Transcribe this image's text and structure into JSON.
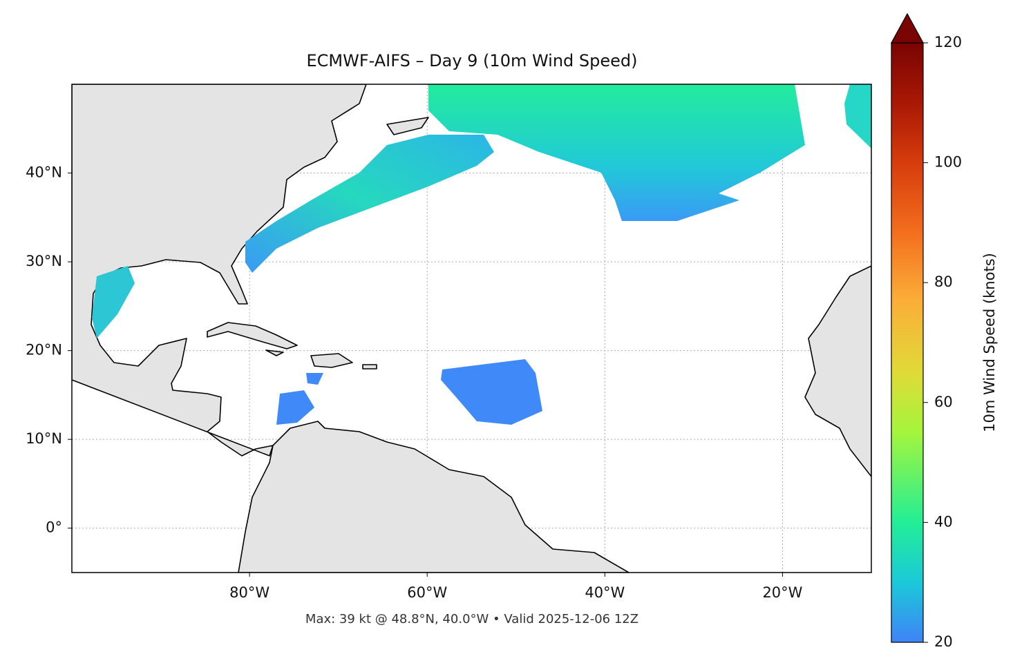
{
  "title": "ECMWF-AIFS – Day 9 (10m Wind Speed)",
  "note": "Max: 39 kt @ 48.8°N, 40.0°W • Valid 2025-12-06 12Z",
  "map": {
    "xlim": [
      -100,
      -10
    ],
    "ylim": [
      -5,
      50
    ],
    "xticks": [
      {
        "value": -80,
        "label": "80°W"
      },
      {
        "value": -60,
        "label": "60°W"
      },
      {
        "value": -40,
        "label": "40°W"
      },
      {
        "value": -20,
        "label": "20°W"
      }
    ],
    "yticks": [
      {
        "value": 0,
        "label": "0°"
      },
      {
        "value": 10,
        "label": "10°N"
      },
      {
        "value": 20,
        "label": "20°N"
      },
      {
        "value": 30,
        "label": "30°N"
      },
      {
        "value": 40,
        "label": "40°N"
      }
    ]
  },
  "colorbar": {
    "label": "10m Wind Speed (knots)",
    "lim": [
      20,
      120
    ],
    "ticks": [
      20,
      40,
      60,
      80,
      100,
      120
    ]
  }
}
